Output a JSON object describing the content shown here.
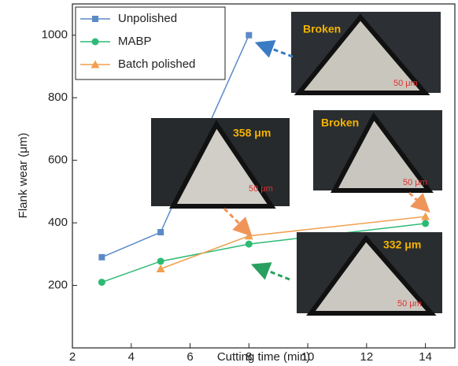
{
  "chart_data": {
    "type": "line",
    "x_label": "Cutting time (min)",
    "y_label": "Flank wear (μm)",
    "xlim": [
      2,
      15
    ],
    "xticks": [
      2,
      4,
      6,
      8,
      10,
      12,
      14
    ],
    "ylim": [
      0,
      1100
    ],
    "yticks": [
      200,
      400,
      600,
      800,
      1000
    ],
    "legend": "upper left",
    "series": [
      {
        "name": "Unpolished",
        "color": "#5b8ac6",
        "marker": "square",
        "x": [
          3,
          5,
          8
        ],
        "values": [
          290,
          370,
          1000
        ]
      },
      {
        "name": "MABP",
        "color": "#2dba75",
        "marker": "circle",
        "x": [
          3,
          5,
          8,
          14
        ],
        "values": [
          210,
          277,
          332,
          398
        ]
      },
      {
        "name": "Batch polished",
        "color": "#f0a050",
        "marker": "triangle",
        "x": [
          5,
          8,
          14
        ],
        "values": [
          253,
          358,
          420
        ]
      }
    ],
    "annotations": [
      "Broken",
      "358 μm",
      "Broken",
      "332 μm",
      "50 μm",
      "50 μm",
      "50 μm",
      "50 μm"
    ]
  }
}
